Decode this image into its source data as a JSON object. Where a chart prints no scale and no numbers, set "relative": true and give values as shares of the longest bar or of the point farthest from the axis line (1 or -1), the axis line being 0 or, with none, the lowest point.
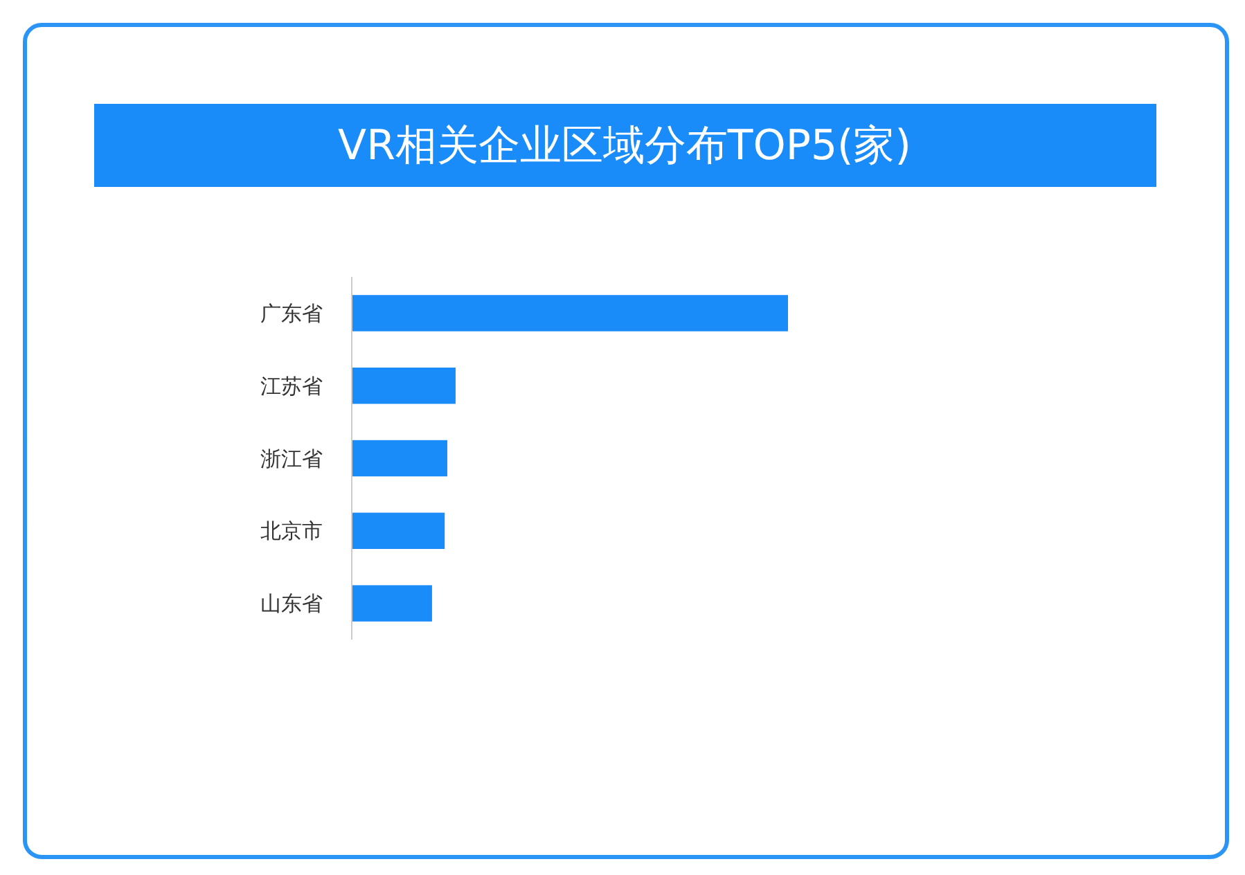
{
  "chart_data": {
    "type": "bar",
    "orientation": "horizontal",
    "relative": true,
    "title": "VR相关企业区域分布TOP5(家)",
    "categories": [
      "广东省",
      "江苏省",
      "浙江省",
      "北京市",
      "山东省"
    ],
    "values": [
      1,
      0.238,
      0.219,
      0.213,
      0.184
    ],
    "color": "#1a8cfa"
  }
}
